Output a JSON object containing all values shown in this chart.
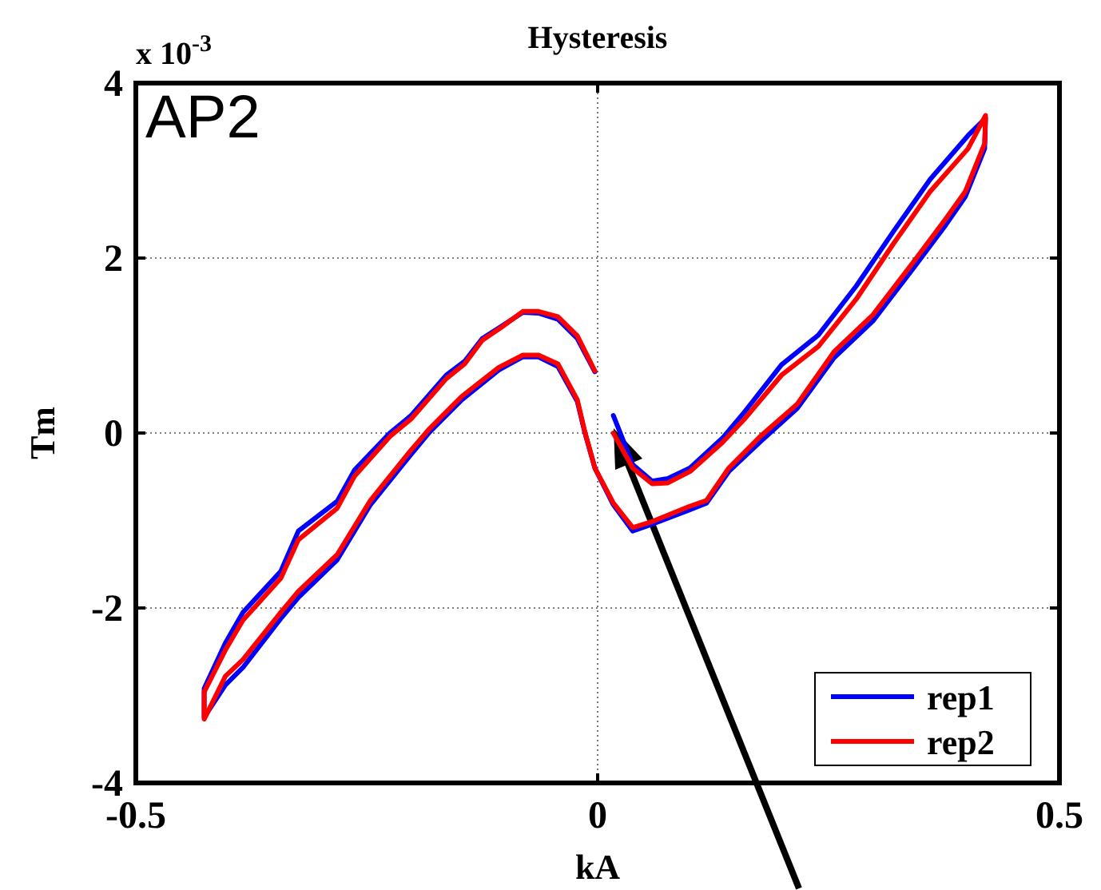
{
  "chart_data": {
    "type": "line",
    "title": "Hysteresis",
    "xlabel": "kA",
    "ylabel": "Tm",
    "annotations": [
      "x 10$^{-3}$",
      "AP2"
    ],
    "xlim": [
      -0.5,
      0.5
    ],
    "xticks": [
      -0.5,
      0,
      0.5
    ],
    "ylim": [
      -4,
      4
    ],
    "yticks": [
      -4,
      -2,
      0,
      2,
      4
    ],
    "grid": true,
    "legend": "bottom right",
    "line_style": "solid",
    "marker": "none",
    "series": [
      {
        "name": "rep1",
        "color": "#0000ff",
        "x": [
          0.017,
          0.038,
          0.059,
          0.076,
          0.1,
          0.135,
          0.159,
          0.199,
          0.239,
          0.28,
          0.32,
          0.36,
          0.401,
          0.42,
          0.419,
          0.398,
          0.377,
          0.343,
          0.298,
          0.256,
          0.216,
          0.176,
          0.142,
          0.118,
          0.099,
          0.057,
          0.038,
          0.017,
          -0.003,
          -0.014,
          -0.022,
          -0.043,
          -0.064,
          -0.081,
          -0.107,
          -0.147,
          -0.182,
          -0.204,
          -0.246,
          -0.282,
          -0.324,
          -0.343,
          -0.384,
          -0.403,
          -0.426,
          -0.426,
          -0.403,
          -0.384,
          -0.343,
          -0.324,
          -0.282,
          -0.263,
          -0.225,
          -0.202,
          -0.164,
          -0.144,
          -0.125,
          -0.104,
          -0.081,
          -0.064,
          -0.043,
          -0.022,
          -0.003
        ],
        "values": [
          0.2,
          -0.36,
          -0.55,
          -0.52,
          -0.4,
          -0.06,
          0.24,
          0.78,
          1.12,
          1.68,
          2.3,
          2.9,
          3.4,
          3.6,
          3.25,
          2.7,
          2.38,
          1.9,
          1.28,
          0.86,
          0.28,
          -0.1,
          -0.44,
          -0.8,
          -0.88,
          -1.05,
          -1.12,
          -0.82,
          -0.4,
          0.01,
          0.36,
          0.76,
          0.87,
          0.87,
          0.72,
          0.38,
          0.01,
          -0.27,
          -0.82,
          -1.45,
          -1.88,
          -2.12,
          -2.68,
          -2.88,
          -3.25,
          -2.92,
          -2.4,
          -2.05,
          -1.58,
          -1.12,
          -0.78,
          -0.42,
          0,
          0.2,
          0.66,
          0.82,
          1.08,
          1.22,
          1.38,
          1.37,
          1.3,
          1.08,
          0.7
        ]
      },
      {
        "name": "rep2",
        "color": "#ff0000",
        "x": [
          0.017,
          0.038,
          0.059,
          0.076,
          0.1,
          0.135,
          0.159,
          0.199,
          0.239,
          0.28,
          0.32,
          0.36,
          0.401,
          0.42,
          0.419,
          0.398,
          0.377,
          0.343,
          0.298,
          0.256,
          0.216,
          0.176,
          0.142,
          0.118,
          0.099,
          0.057,
          0.038,
          0.017,
          -0.003,
          -0.014,
          -0.022,
          -0.043,
          -0.064,
          -0.081,
          -0.107,
          -0.147,
          -0.182,
          -0.204,
          -0.246,
          -0.282,
          -0.324,
          -0.343,
          -0.384,
          -0.403,
          -0.426,
          -0.426,
          -0.403,
          -0.384,
          -0.343,
          -0.324,
          -0.282,
          -0.263,
          -0.225,
          -0.202,
          -0.164,
          -0.144,
          -0.125,
          -0.104,
          -0.081,
          -0.064,
          -0.043,
          -0.022,
          -0.003
        ],
        "values": [
          0,
          -0.4,
          -0.58,
          -0.57,
          -0.44,
          -0.11,
          0.16,
          0.66,
          0.99,
          1.53,
          2.16,
          2.76,
          3.25,
          3.63,
          3.31,
          2.76,
          2.45,
          1.97,
          1.35,
          0.93,
          0.33,
          -0.04,
          -0.4,
          -0.77,
          -0.84,
          -1.02,
          -1.08,
          -0.8,
          -0.4,
          0.02,
          0.38,
          0.79,
          0.89,
          0.89,
          0.75,
          0.42,
          0.05,
          -0.22,
          -0.77,
          -1.39,
          -1.81,
          -2.05,
          -2.59,
          -2.78,
          -3.27,
          -2.96,
          -2.48,
          -2.14,
          -1.66,
          -1.22,
          -0.86,
          -0.49,
          -0.04,
          0.16,
          0.62,
          0.79,
          1.06,
          1.21,
          1.39,
          1.39,
          1.33,
          1.11,
          0.71
        ]
      }
    ]
  }
}
